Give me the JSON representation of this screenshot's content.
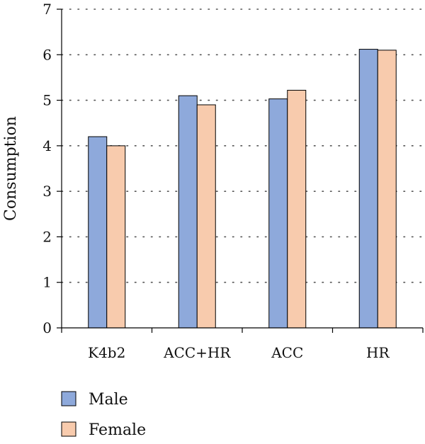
{
  "chart_data": {
    "type": "bar",
    "title": "",
    "xlabel": "",
    "ylabel": "Consumption",
    "ylim": [
      0,
      7
    ],
    "yticks": [
      0,
      1,
      2,
      3,
      4,
      5,
      6,
      7
    ],
    "categories": [
      "K4b2",
      "ACC+HR",
      "ACC",
      "HR"
    ],
    "series": [
      {
        "name": "Male",
        "values": [
          4.2,
          5.1,
          5.03,
          6.12
        ],
        "color": "#8EA9DB"
      },
      {
        "name": "Female",
        "values": [
          4.0,
          4.9,
          5.22,
          6.1
        ],
        "color": "#F8CBAD"
      }
    ],
    "grid": "horizontal-dotted",
    "legend_position": "bottom-left"
  }
}
